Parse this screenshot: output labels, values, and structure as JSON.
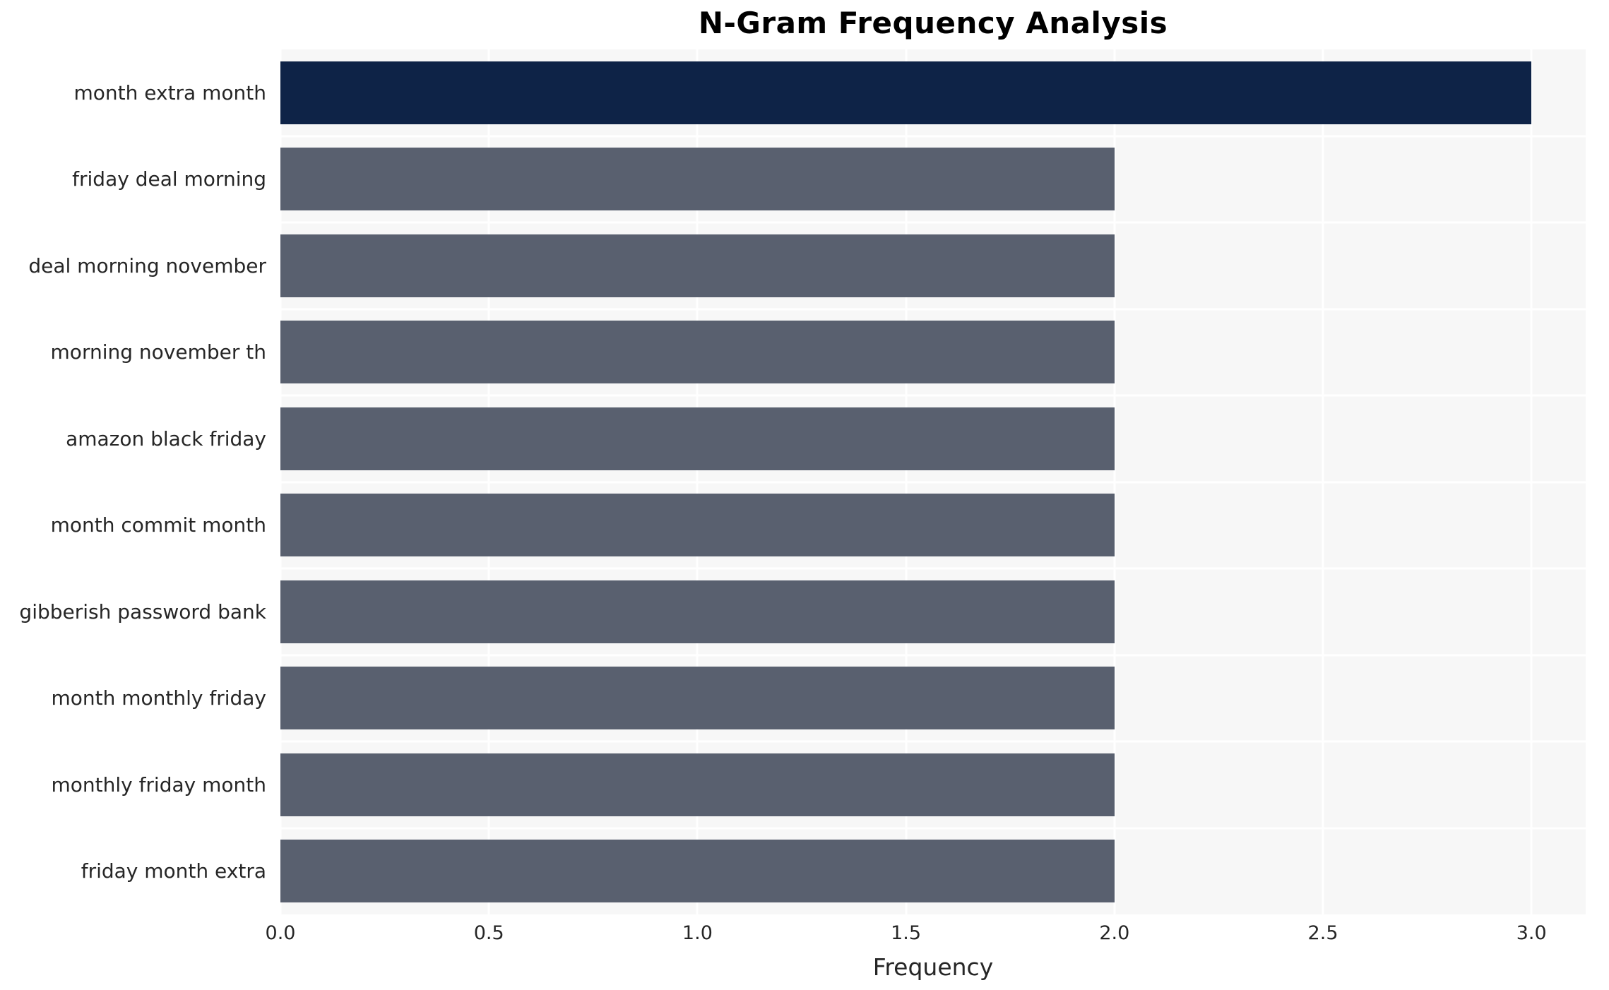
{
  "chart_data": {
    "type": "bar",
    "orientation": "horizontal",
    "title": "N-Gram Frequency Analysis",
    "xlabel": "Frequency",
    "ylabel": "",
    "categories": [
      "month extra month",
      "friday deal morning",
      "deal morning november",
      "morning november th",
      "amazon black friday",
      "month commit month",
      "gibberish password bank",
      "month monthly friday",
      "monthly friday month",
      "friday month extra"
    ],
    "values": [
      3,
      2,
      2,
      2,
      2,
      2,
      2,
      2,
      2,
      2
    ],
    "xlim": [
      0,
      3.13
    ],
    "xtick_labels": [
      "0.0",
      "0.5",
      "1.0",
      "1.5",
      "2.0",
      "2.5",
      "3.0"
    ],
    "grid": "on",
    "legend": "none",
    "colors": {
      "bar_highlight": "#0e2347",
      "bar_default": "#59606f",
      "plot_background": "#f7f7f7",
      "grid_line": "#ffffff",
      "text": "#262626"
    }
  }
}
